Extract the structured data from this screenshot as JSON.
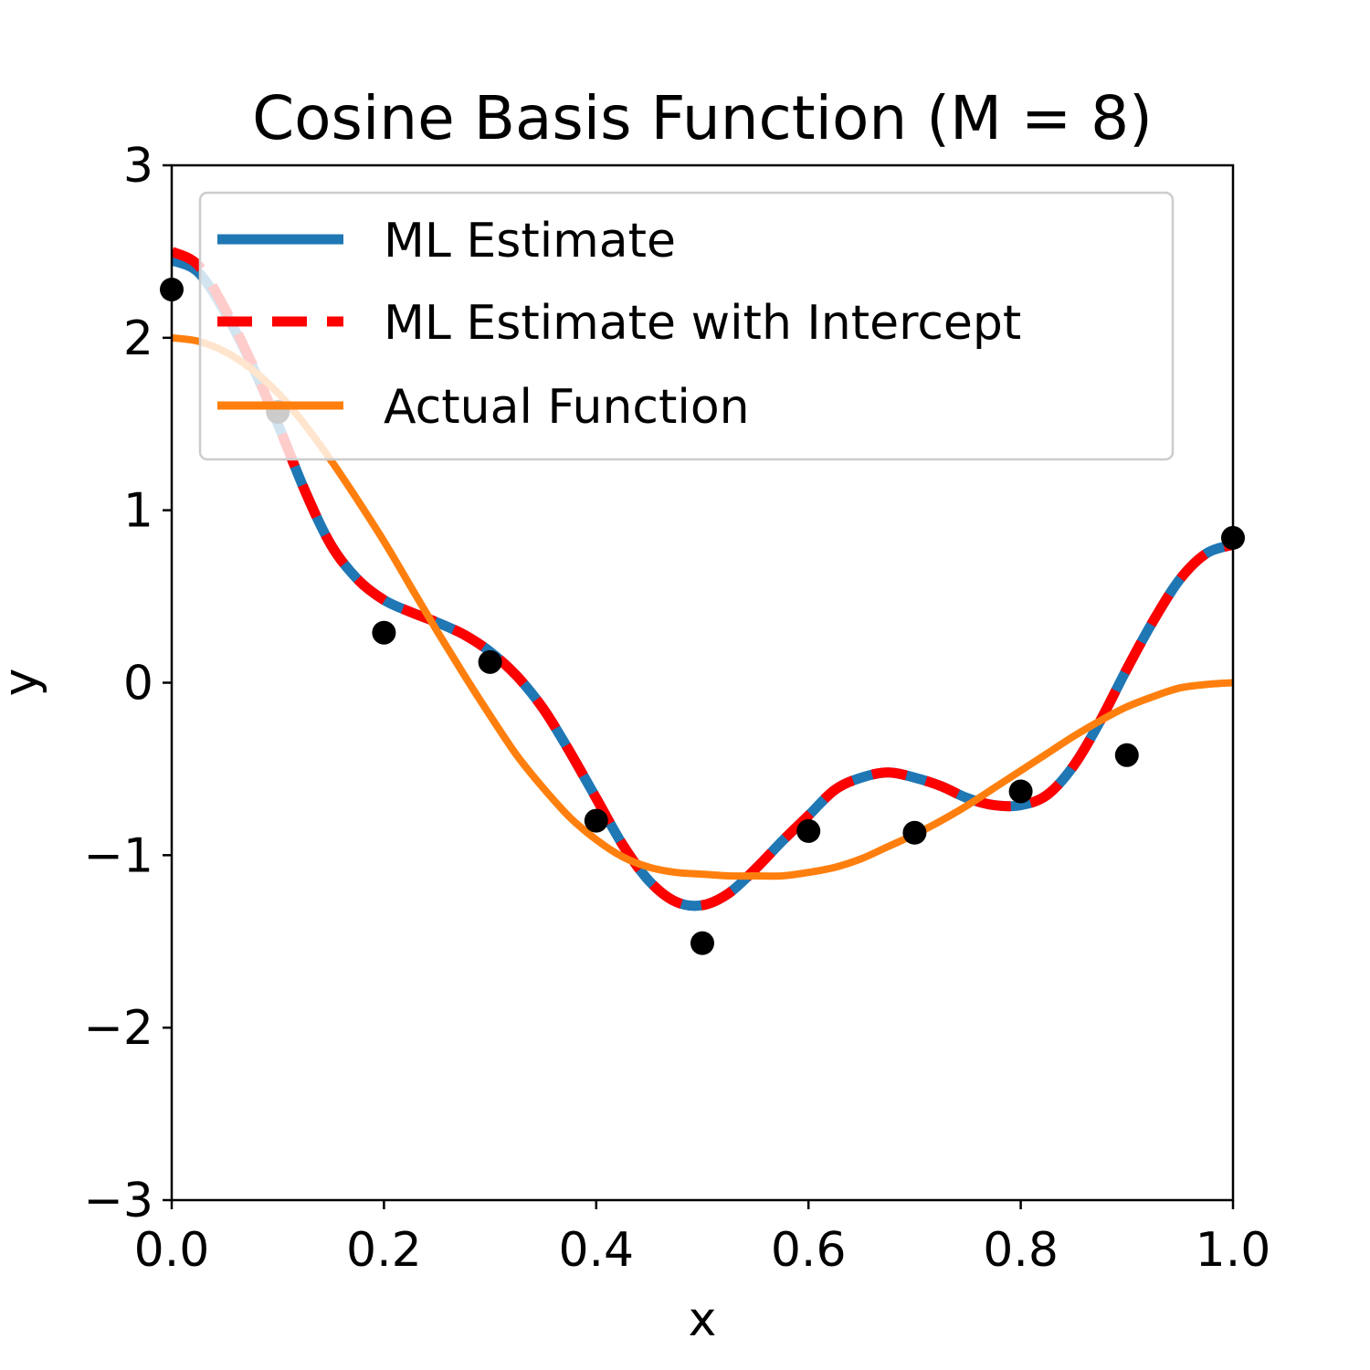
{
  "chart_data": {
    "type": "line",
    "title": "Cosine Basis Function (M = 8)",
    "xlabel": "x",
    "ylabel": "y",
    "xlim": [
      0.0,
      1.0
    ],
    "ylim": [
      -3,
      3
    ],
    "xticks": [
      0.0,
      0.2,
      0.4,
      0.6,
      0.8,
      1.0
    ],
    "xtick_labels": [
      "0.0",
      "0.2",
      "0.4",
      "0.6",
      "0.8",
      "1.0"
    ],
    "yticks": [
      -3,
      -2,
      -1,
      0,
      1,
      2,
      3
    ],
    "ytick_labels": [
      "−3",
      "−2",
      "−1",
      "0",
      "1",
      "2",
      "3"
    ],
    "grid": false,
    "legend_position": "top-right",
    "series": [
      {
        "name": "ML Estimate",
        "style": "solid",
        "color": "#1f77b4",
        "x": [
          0.0,
          0.025,
          0.05,
          0.075,
          0.1,
          0.125,
          0.15,
          0.175,
          0.2,
          0.225,
          0.25,
          0.275,
          0.3,
          0.325,
          0.35,
          0.375,
          0.4,
          0.425,
          0.45,
          0.475,
          0.5,
          0.525,
          0.55,
          0.575,
          0.6,
          0.625,
          0.65,
          0.675,
          0.7,
          0.725,
          0.75,
          0.775,
          0.8,
          0.825,
          0.85,
          0.875,
          0.9,
          0.925,
          0.95,
          0.975,
          1.0
        ],
        "y": [
          2.45,
          2.38,
          2.15,
          1.85,
          1.5,
          1.12,
          0.8,
          0.6,
          0.48,
          0.41,
          0.35,
          0.28,
          0.18,
          0.04,
          -0.15,
          -0.4,
          -0.67,
          -0.94,
          -1.15,
          -1.27,
          -1.29,
          -1.22,
          -1.08,
          -0.92,
          -0.77,
          -0.62,
          -0.55,
          -0.52,
          -0.55,
          -0.6,
          -0.67,
          -0.71,
          -0.71,
          -0.65,
          -0.48,
          -0.22,
          0.08,
          0.36,
          0.6,
          0.75,
          0.8
        ]
      },
      {
        "name": "ML Estimate with Intercept",
        "style": "dashed",
        "color": "#ff0000",
        "x": [
          0.0,
          0.025,
          0.05,
          0.075,
          0.1,
          0.125,
          0.15,
          0.175,
          0.2,
          0.225,
          0.25,
          0.275,
          0.3,
          0.325,
          0.35,
          0.375,
          0.4,
          0.425,
          0.45,
          0.475,
          0.5,
          0.525,
          0.55,
          0.575,
          0.6,
          0.625,
          0.65,
          0.675,
          0.7,
          0.725,
          0.75,
          0.775,
          0.8,
          0.825,
          0.85,
          0.875,
          0.9,
          0.925,
          0.95,
          0.975,
          1.0
        ],
        "y": [
          2.5,
          2.42,
          2.17,
          1.86,
          1.5,
          1.12,
          0.8,
          0.6,
          0.48,
          0.41,
          0.35,
          0.28,
          0.18,
          0.04,
          -0.15,
          -0.4,
          -0.67,
          -0.94,
          -1.15,
          -1.27,
          -1.29,
          -1.22,
          -1.08,
          -0.92,
          -0.77,
          -0.62,
          -0.55,
          -0.52,
          -0.55,
          -0.6,
          -0.67,
          -0.71,
          -0.71,
          -0.65,
          -0.48,
          -0.22,
          0.08,
          0.36,
          0.6,
          0.75,
          0.8
        ]
      },
      {
        "name": "Actual Function",
        "style": "solid",
        "color": "#ff7f0e",
        "x": [
          0.0,
          0.025,
          0.05,
          0.075,
          0.1,
          0.125,
          0.15,
          0.175,
          0.2,
          0.225,
          0.25,
          0.275,
          0.3,
          0.325,
          0.35,
          0.375,
          0.4,
          0.425,
          0.45,
          0.475,
          0.5,
          0.525,
          0.55,
          0.575,
          0.6,
          0.625,
          0.65,
          0.675,
          0.7,
          0.725,
          0.75,
          0.775,
          0.8,
          0.825,
          0.85,
          0.875,
          0.9,
          0.925,
          0.95,
          0.975,
          1.0
        ],
        "y": [
          2.0,
          1.98,
          1.92,
          1.82,
          1.68,
          1.5,
          1.29,
          1.06,
          0.82,
          0.56,
          0.3,
          0.05,
          -0.19,
          -0.42,
          -0.61,
          -0.78,
          -0.91,
          -1.01,
          -1.07,
          -1.1,
          -1.11,
          -1.12,
          -1.12,
          -1.12,
          -1.1,
          -1.07,
          -1.02,
          -0.95,
          -0.88,
          -0.8,
          -0.71,
          -0.61,
          -0.51,
          -0.41,
          -0.31,
          -0.22,
          -0.14,
          -0.08,
          -0.03,
          -0.01,
          0.0
        ]
      }
    ],
    "points": {
      "color": "#000000",
      "x": [
        0.0,
        0.1,
        0.2,
        0.3,
        0.4,
        0.5,
        0.6,
        0.7,
        0.8,
        0.9,
        1.0
      ],
      "y": [
        2.28,
        1.57,
        0.29,
        0.12,
        -0.8,
        -1.51,
        -0.86,
        -0.87,
        -0.63,
        -0.42,
        0.84
      ]
    }
  }
}
